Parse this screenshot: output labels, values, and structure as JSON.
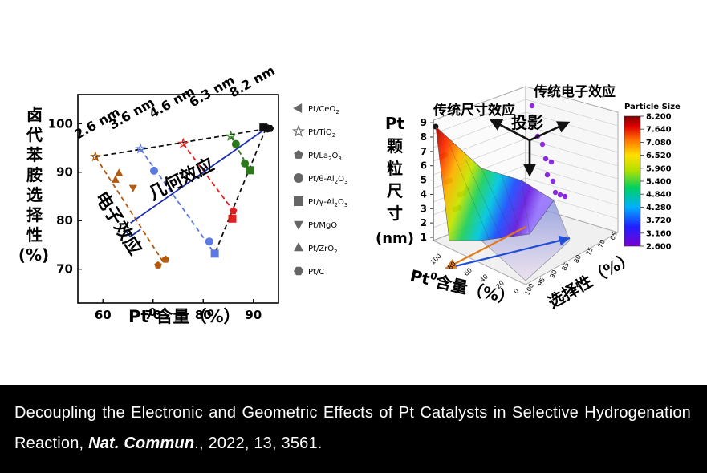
{
  "chart_data": [
    {
      "type": "scatter",
      "xlabel_main": "Pt",
      "xlabel_sup": "0",
      "xlabel_rest": "含量（%）",
      "ylabel_lines": [
        "卤",
        "代",
        "苯",
        "胺",
        "选",
        "择",
        "性",
        "(%)"
      ],
      "xlim": [
        55,
        95
      ],
      "ylim": [
        63,
        106
      ],
      "xticks": [
        60,
        70,
        80,
        90
      ],
      "yticks": [
        70,
        80,
        90,
        100
      ],
      "legend_position": "right",
      "series": [
        {
          "name": "Pt/CeO2",
          "label": "Pt/CeO",
          "sub": "2",
          "marker": "tri-left",
          "points": []
        },
        {
          "name": "Pt/TiO2",
          "label": "Pt/TiO",
          "sub": "2",
          "marker": "star",
          "points": [
            [
              58.5,
              93.2
            ],
            [
              67.5,
              94.8
            ],
            [
              76.0,
              95.9
            ],
            [
              85.5,
              97.4
            ]
          ]
        },
        {
          "name": "Pt/La2O3",
          "label": "Pt/La",
          "sub": "2",
          "label2": "O",
          "sub2": "3",
          "marker": "pentagon",
          "points": [
            [
              71.0,
              70.8
            ],
            [
              72.5,
              72.0
            ],
            [
              86.0,
              82.0
            ]
          ]
        },
        {
          "name": "Pt/θ-Al2O3",
          "label": "Pt/θ-Al",
          "sub": "2",
          "label2": "O",
          "sub2": "3",
          "marker": "circle",
          "points": [
            [
              70.2,
              90.3
            ],
            [
              81.2,
              75.7
            ],
            [
              86.5,
              95.8
            ],
            [
              88.3,
              91.8
            ],
            [
              92.8,
              99.0
            ]
          ]
        },
        {
          "name": "Pt/γ-Al2O3",
          "label": "Pt/γ-Al",
          "sub": "2",
          "label2": "O",
          "sub2": "3",
          "marker": "square",
          "points": [
            [
              82.3,
              73.2
            ],
            [
              85.8,
              80.4
            ],
            [
              89.3,
              90.4
            ],
            [
              92.0,
              99.2
            ]
          ]
        },
        {
          "name": "Pt/MgO",
          "label": "Pt/MgO",
          "marker": "tri-down",
          "points": [
            [
              66.0,
              86.8
            ]
          ]
        },
        {
          "name": "Pt/ZrO2",
          "label": "Pt/ZrO",
          "sub": "2",
          "marker": "tri-up",
          "points": [
            [
              62.5,
              88.4
            ],
            [
              63.2,
              89.8
            ]
          ]
        },
        {
          "name": "Pt/C",
          "label": "Pt/C",
          "marker": "hexagon",
          "points": [
            [
              92.6,
              99.1
            ],
            [
              93.3,
              99.0
            ]
          ]
        }
      ],
      "size_labels": [
        "2.6 nm",
        "3.6 nm",
        "4.6 nm",
        "6.3 nm",
        "8.2 nm"
      ],
      "annotations": {
        "electronic": "电子效应",
        "geometric": "几何效应"
      },
      "colors": {
        "orange": "#b25a10",
        "blue": "#5b79e0",
        "red": "#e02020",
        "green": "#2a7a1a",
        "black": "#111111",
        "navy": "#1c2fb0"
      }
    },
    {
      "type": "3d-surface",
      "zlabel_lines": [
        "Pt",
        "颗",
        "粒",
        "尺",
        "寸",
        "(nm)"
      ],
      "xlabel_main": "Pt",
      "xlabel_sup": "0",
      "xlabel_rest": "含量（%）",
      "ylabel": "选择性（%）",
      "zticks": [
        1,
        2,
        3,
        4,
        5,
        6,
        7,
        8,
        9
      ],
      "x_axis_ticks": [
        "100",
        "80",
        "60",
        "40",
        "20",
        "0"
      ],
      "y_axis_ticks": [
        "100",
        "95",
        "90",
        "85",
        "80",
        "75",
        "70",
        "65"
      ],
      "top_labels": [
        "传统尺寸效应",
        "传统电子效应"
      ],
      "center_label": "投影",
      "colorbar": {
        "title": "Particle Size",
        "ticks": [
          "8.200",
          "7.640",
          "7.080",
          "6.520",
          "5.960",
          "5.400",
          "4.840",
          "4.280",
          "3.720",
          "3.160",
          "2.600"
        ],
        "range": [
          2.6,
          8.2
        ]
      },
      "colors": {
        "black_points": "#111111",
        "purple_points": "#8a2be2",
        "blue_arrow": "#1f4fd6",
        "orange_arrow": "#e07a1a"
      }
    }
  ],
  "caption": {
    "text_before": "Decoupling the Electronic and Geometric Effects of Pt Catalysts in Selective Hydrogenation Reaction, ",
    "journal": "Nat. Commun",
    "text_after": "., 2022, 13, 3561."
  }
}
